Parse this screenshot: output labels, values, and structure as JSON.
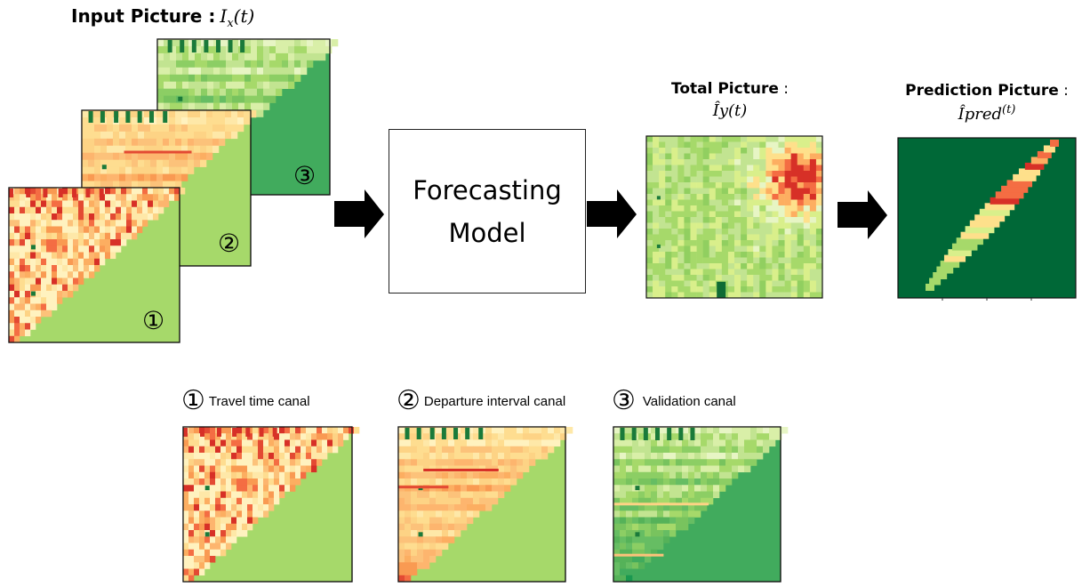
{
  "input_title": {
    "label": "Input Picture",
    "sep": " :",
    "math": "I",
    "sub": "x",
    "arg": "(t)"
  },
  "total_title": {
    "label": "Total Picture",
    "sep": " :",
    "math": "Îy(t)"
  },
  "prediction_title": {
    "label": "Prediction Picture",
    "sep": " :",
    "math": "Îpred",
    "sup": "(t)"
  },
  "model": {
    "line1": "Forecasting",
    "line2": "Model"
  },
  "stack_markers": [
    "①",
    "②",
    "③"
  ],
  "legend": [
    {
      "marker": "①",
      "label": "Travel time canal"
    },
    {
      "marker": "②",
      "label": "Departure interval canal"
    },
    {
      "marker": "③",
      "label": "Validation canal"
    }
  ],
  "colors": {
    "travel_fill": "#a6d96a",
    "departure_fill": "#a6d96a",
    "validation_fill": "#41ab5d",
    "prediction_bg": "#006837",
    "arrow": "#000000"
  }
}
